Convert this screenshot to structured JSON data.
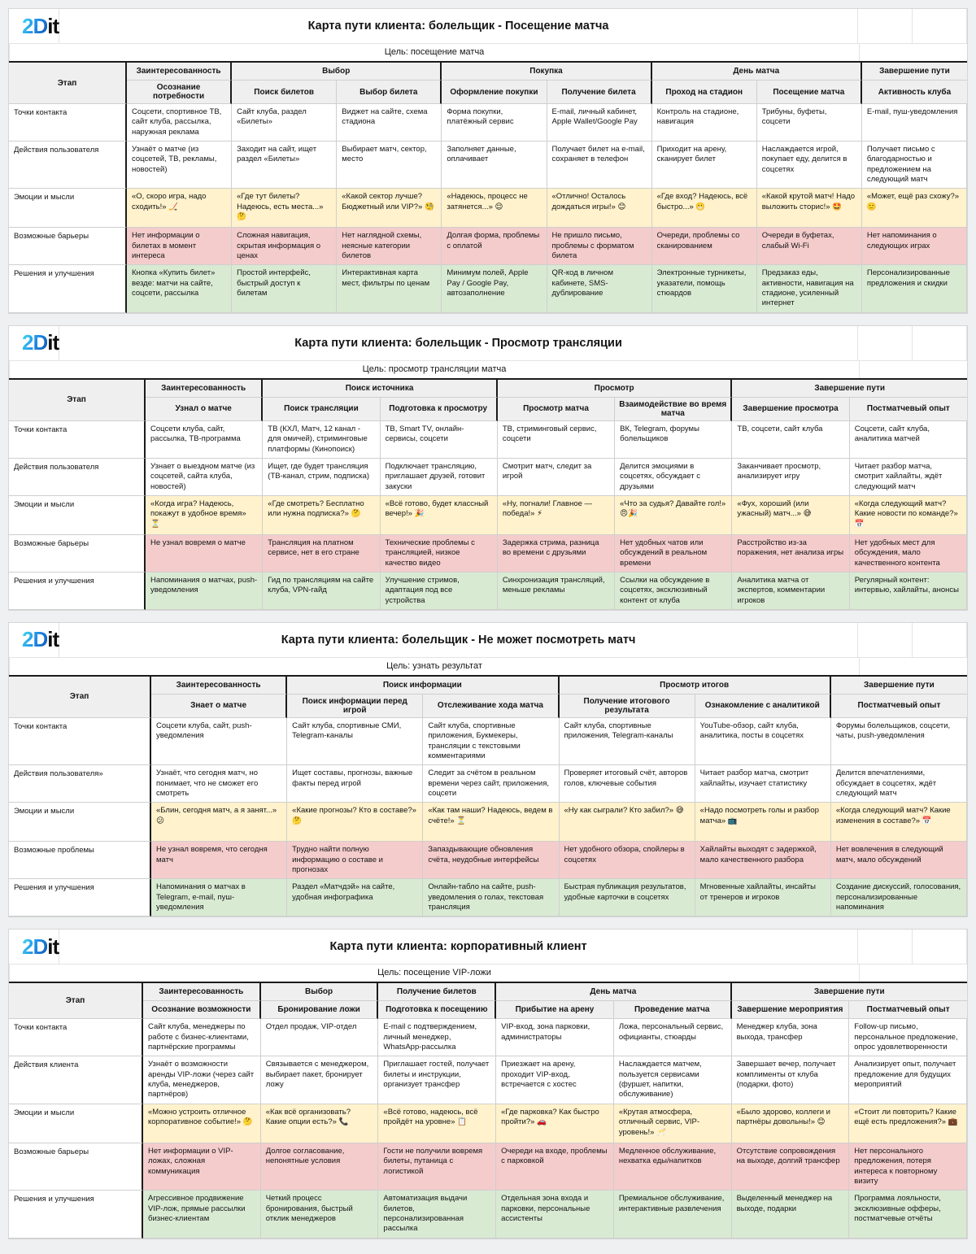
{
  "logo": {
    "part1": "2D",
    "part2": "it"
  },
  "colors": {
    "emotion_bg": "#fff2cc",
    "barrier_bg": "#f4cccc",
    "solution_bg": "#d9ead3",
    "header_bg": "#efefef",
    "group_border": "#1b1b1b",
    "logo_gradient_start": "#3fd4f2",
    "logo_gradient_end": "#1259b0"
  },
  "tables": [
    {
      "title": "Карта пути клиента: болельщик - Посещение матча",
      "goal": "Цель: посещение матча",
      "stage_label": "Этап",
      "groups": [
        {
          "label": "Заинтересованность",
          "span": 1
        },
        {
          "label": "Выбор",
          "span": 2
        },
        {
          "label": "Покупка",
          "span": 2
        },
        {
          "label": "День матча",
          "span": 2
        },
        {
          "label": "Завершение пути",
          "span": 1
        }
      ],
      "substages": [
        "Осознание потребности",
        "Поиск билетов",
        "Выбор билета",
        "Оформление покупки",
        "Получение билета",
        "Проход на стадион",
        "Посещение матча",
        "Активность клуба"
      ],
      "rows": [
        {
          "label": "Точки контакта",
          "type": "plain",
          "cells": [
            "Соцсети, спортивное ТВ, сайт клуба, рассылка, наружная реклама",
            "Сайт клуба, раздел «Билеты»",
            "Виджет на сайте, схема стадиона",
            "Форма покупки, платёжный сервис",
            "E-mail, личный кабинет, Apple Wallet/Google Pay",
            "Контроль на стадионе, навигация",
            "Трибуны, буфеты, соцсети",
            "E-mail, пуш-уведомления"
          ]
        },
        {
          "label": "Действия пользователя",
          "type": "plain",
          "cells": [
            "Узнаёт о матче (из соцсетей, ТВ, рекламы, новостей)",
            "Заходит на сайт, ищет раздел «Билеты»",
            "Выбирает матч, сектор, место",
            "Заполняет данные, оплачивает",
            "Получает билет на e-mail, сохраняет в телефон",
            "Приходит на арену, сканирует билет",
            "Наслаждается игрой, покупает еду, делится в соцсетях",
            "Получает письмо с благодарностью и предложением на следующий матч"
          ]
        },
        {
          "label": "Эмоции и мысли",
          "type": "emotion",
          "cells": [
            "«О, скоро игра, надо сходить!» 🏒",
            "«Где тут билеты? Надеюсь, есть места...» 🤔",
            "«Какой сектор лучше? Бюджетный или VIP?» 🧐",
            "«Надеюсь, процесс не затянется...» 😌",
            "«Отлично! Осталось дождаться игры!» 😊",
            "«Где вход? Надеюсь, всё быстро...» 😬",
            "«Какой крутой матч! Надо выложить сторис!» 🤩",
            "«Может, ещё раз схожу?» 🙂"
          ]
        },
        {
          "label": "Возможные барьеры",
          "type": "barrier",
          "cells": [
            "Нет информации о билетах в момент интереса",
            "Сложная навигация, скрытая информация о ценах",
            "Нет наглядной схемы, неясные категории билетов",
            "Долгая форма, проблемы с оплатой",
            "Не пришло письмо, проблемы с форматом билета",
            "Очереди, проблемы со сканированием",
            "Очереди в буфетах, слабый Wi-Fi",
            "Нет напоминания о следующих играх"
          ]
        },
        {
          "label": "Решения и улучшения",
          "type": "solution",
          "cells": [
            "Кнопка «Купить билет» везде: матчи на сайте, соцсети, рассылка",
            "Простой интерфейс, быстрый доступ к билетам",
            "Интерактивная карта мест, фильтры по ценам",
            "Минимум полей, Apple Pay / Google Pay, автозаполнение",
            "QR-код в личном кабинете, SMS-дублирование",
            "Электронные турникеты, указатели, помощь стюардов",
            "Предзаказ еды, активности, навигация на стадионе, усиленный интернет",
            "Персонализированные предложения и скидки"
          ]
        }
      ]
    },
    {
      "title": "Карта пути клиента: болельщик - Просмотр трансляции",
      "goal": "Цель: просмотр трансляции матча",
      "stage_label": "Этап",
      "groups": [
        {
          "label": "Заинтересованность",
          "span": 1
        },
        {
          "label": "Поиск источника",
          "span": 2
        },
        {
          "label": "Просмотр",
          "span": 2
        },
        {
          "label": "Завершение пути",
          "span": 2
        }
      ],
      "substages": [
        "Узнал о матче",
        "Поиск трансляции",
        "Подготовка к просмотру",
        "Просмотр матча",
        "Взаимодействие во время матча",
        "Завершение просмотра",
        "Постматчевый опыт"
      ],
      "rows": [
        {
          "label": "Точки контакта",
          "type": "plain",
          "cells": [
            "Соцсети клуба, сайт, рассылка, ТВ-программа",
            "ТВ (КХЛ, Матч, 12 канал - для омичей), стриминговые платформы (Кинопоиск)",
            "ТВ, Smart TV, онлайн-сервисы, соцсети",
            "ТВ, стриминговый сервис, соцсети",
            "ВК, Telegram, форумы болельщиков",
            "ТВ, соцсети, сайт клуба",
            "Соцсети, сайт клуба, аналитика матчей"
          ]
        },
        {
          "label": "Действия пользователя",
          "type": "plain",
          "cells": [
            "Узнает о выездном матче (из соцсетей, сайта клуба, новостей)",
            "Ищет, где будет трансляция (ТВ-канал, стрим, подписка)",
            "Подключает трансляцию, приглашает друзей, готовит закуски",
            "Смотрит матч, следит за игрой",
            "Делится эмоциями в соцсетях, обсуждает с друзьями",
            "Заканчивает просмотр, анализирует игру",
            "Читает разбор матча, смотрит хайлайты, ждёт следующий матч"
          ]
        },
        {
          "label": "Эмоции и мысли",
          "type": "emotion",
          "cells": [
            "«Когда игра? Надеюсь, покажут в удобное время» ⏳",
            "«Где смотреть? Бесплатно или нужна подписка?» 🤔",
            "«Всё готово, будет классный вечер!» 🎉",
            "«Ну, погнали! Главное — победа!» ⚡",
            "«Что за судья? Давайте гол!» 😠🎉",
            "«Фух, хороший (или ужасный) матч...» 😅",
            "«Когда следующий матч? Какие новости по команде?» 📅"
          ]
        },
        {
          "label": "Возможные барьеры",
          "type": "barrier",
          "cells": [
            "Не узнал вовремя о матче",
            "Трансляция на платном сервисе, нет в его стране",
            "Технические проблемы с трансляцией, низкое качество видео",
            "Задержка стрима, разница во времени с друзьями",
            "Нет удобных чатов или обсуждений в реальном времени",
            "Расстройство из-за поражения, нет анализа игры",
            "Нет удобных мест для обсуждения, мало качественного контента"
          ]
        },
        {
          "label": "Решения и улучшения",
          "type": "solution",
          "cells": [
            "Напоминания о матчах, push-уведомления",
            "Гид по трансляциям на сайте клуба, VPN-гайд",
            "Улучшение стримов, адаптация под все устройства",
            "Синхронизация трансляций, меньше рекламы",
            "Ссылки на обсуждение в соцсетях, эксклюзивный контент от клуба",
            "Аналитика матча от экспертов, комментарии игроков",
            "Регулярный контент: интервью, хайлайты, анонсы"
          ]
        }
      ]
    },
    {
      "title": "Карта пути клиента: болельщик - Не может посмотреть матч",
      "goal": "Цель: узнать результат",
      "stage_label": "Этап",
      "groups": [
        {
          "label": "Заинтересованность",
          "span": 1
        },
        {
          "label": "Поиск информации",
          "span": 2
        },
        {
          "label": "Просмотр итогов",
          "span": 2
        },
        {
          "label": "Завершение пути",
          "span": 1
        }
      ],
      "substages": [
        "Знает о матче",
        "Поиск информации перед игрой",
        "Отслеживание хода матча",
        "Получение итогового результата",
        "Ознакомление с аналитикой",
        "Постматчевый опыт"
      ],
      "rows": [
        {
          "label": "Точки контакта",
          "type": "plain",
          "cells": [
            "Соцсети клуба, сайт, push-уведомления",
            "Сайт клуба, спортивные СМИ, Telegram-каналы",
            "Сайт клуба, спортивные приложения, Букмекеры, трансляции с текстовыми комментариями",
            "Сайт клуба, спортивные приложения, Telegram-каналы",
            "YouTube-обзор, сайт клуба, аналитика, посты в соцсетях",
            "Форумы болельщиков, соцсети, чаты, push-уведомления"
          ]
        },
        {
          "label": "Действия пользователя»",
          "type": "plain",
          "cells": [
            "Узнаёт, что сегодня матч, но понимает, что не сможет его смотреть",
            "Ищет составы, прогнозы, важные факты перед игрой",
            "Следит за счётом в реальном времени через сайт, приложения, соцсети",
            "Проверяет итоговый счёт, авторов голов, ключевые события",
            "Читает разбор матча, смотрит хайлайты, изучает статистику",
            "Делится впечатлениями, обсуждает в соцсетях, ждёт следующий матч"
          ]
        },
        {
          "label": "Эмоции и мысли",
          "type": "emotion",
          "cells": [
            "«Блин, сегодня матч, а я занят...» 😕",
            "«Какие прогнозы? Кто в составе?» 🤔",
            "«Как там наши? Надеюсь, ведем в счёте!» ⏳",
            "«Ну как сыграли? Кто забил?» 😅",
            "«Надо посмотреть голы и разбор матча» 📺",
            "«Когда следующий матч? Какие изменения в составе?» 📅"
          ]
        },
        {
          "label": "Возможные проблемы",
          "type": "barrier",
          "cells": [
            "Не узнал вовремя, что сегодня матч",
            "Трудно найти полную информацию о составе и прогнозах",
            "Запаздывающие обновления счёта, неудобные интерфейсы",
            "Нет удобного обзора, спойлеры в соцсетях",
            "Хайлайты выходят с задержкой, мало качественного разбора",
            "Нет вовлечения в следующий матч, мало обсуждений"
          ]
        },
        {
          "label": "Решения и улучшения",
          "type": "solution",
          "cells": [
            "Напоминания о матчах в Telegram, e-mail, пуш-уведомления",
            "Раздел «Матчдэй» на сайте, удобная инфографика",
            "Онлайн-табло на сайте, push-уведомления о голах, текстовая трансляция",
            "Быстрая публикация результатов, удобные карточки в соцсетях",
            "Мгновенные хайлайты, инсайты от тренеров и игроков",
            "Создание дискуссий, голосования, персонализированные напоминания"
          ]
        }
      ]
    },
    {
      "title": "Карта пути клиента: корпоративный клиент",
      "goal": "Цель: посещение VIP-ложи",
      "stage_label": "Этап",
      "groups": [
        {
          "label": "Заинтересованность",
          "span": 1
        },
        {
          "label": "Выбор",
          "span": 1
        },
        {
          "label": "Получение билетов",
          "span": 1
        },
        {
          "label": "День матча",
          "span": 2
        },
        {
          "label": "Завершение пути",
          "span": 2
        }
      ],
      "substages": [
        "Осознание возможности",
        "Бронирование ложи",
        "Подготовка к посещению",
        "Прибытие на арену",
        "Проведение матча",
        "Завершение мероприятия",
        "Постматчевый опыт"
      ],
      "rows": [
        {
          "label": "Точки контакта",
          "type": "plain",
          "cells": [
            "Сайт клуба, менеджеры по работе с бизнес-клиентами, партнёрские программы",
            "Отдел продаж, VIP-отдел",
            "E-mail с подтверждением, личный менеджер, WhatsApp-рассылка",
            "VIP-вход, зона парковки, администраторы",
            "Ложа, персональный сервис, официанты, стюарды",
            "Менеджер клуба, зона выхода, трансфер",
            "Follow-up письмо, персональное предложение, опрос удовлетворенности"
          ]
        },
        {
          "label": "Действия клиента",
          "type": "plain",
          "cells": [
            "Узнаёт о возможности аренды VIP-ложи (через сайт клуба, менеджеров, партнёров)",
            "Связывается с менеджером, выбирает пакет, бронирует ложу",
            "Приглашает гостей, получает билеты и инструкции, организует трансфер",
            "Приезжает на арену, проходит VIP-вход, встречается с хостес",
            "Наслаждается матчем, пользуется сервисами (фуршет, напитки, обслуживание)",
            "Завершает вечер, получает комплименты от клуба (подарки, фото)",
            "Анализирует опыт, получает предложение для будущих мероприятий"
          ]
        },
        {
          "label": "Эмоции и мысли",
          "type": "emotion",
          "cells": [
            "«Можно устроить отличное корпоративное событие!» 🤔",
            "«Как всё организовать? Какие опции есть?» 📞",
            "«Всё готово, надеюсь, всё пройдёт на уровне» 📋",
            "«Где парковка? Как быстро пройти?» 🚗",
            "«Крутая атмосфера, отличный сервис, VIP-уровень!» 🥂",
            "«Было здорово, коллеги и партнёры довольны!» 😊",
            "«Стоит ли повторить? Какие ещё есть предложения?» 💼"
          ]
        },
        {
          "label": "Возможные барьеры",
          "type": "barrier",
          "cells": [
            "Нет информации о VIP-ложах, сложная коммуникация",
            "Долгое согласование, непонятные условия",
            "Гости не получили вовремя билеты, путаница с логистикой",
            "Очереди на входе, проблемы с парковкой",
            "Медленное обслуживание, нехватка еды/напитков",
            "Отсутствие сопровождения на выходе, долгий трансфер",
            "Нет персонального предложения, потеря интереса к повторному визиту"
          ]
        },
        {
          "label": "Решения и улучшения",
          "type": "solution",
          "cells": [
            "Агрессивное продвижение VIP-лож, прямые рассылки бизнес-клиентам",
            "Четкий процесс бронирования, быстрый отклик менеджеров",
            "Автоматизация выдачи билетов, персонализированная рассылка",
            "Отдельная зона входа и парковки, персональные ассистенты",
            "Премиальное обслуживание, интерактивные развлечения",
            "Выделенный менеджер на выходе, подарки",
            "Программа лояльности, эксклюзивные офферы, постматчевые отчёты"
          ]
        }
      ]
    }
  ]
}
